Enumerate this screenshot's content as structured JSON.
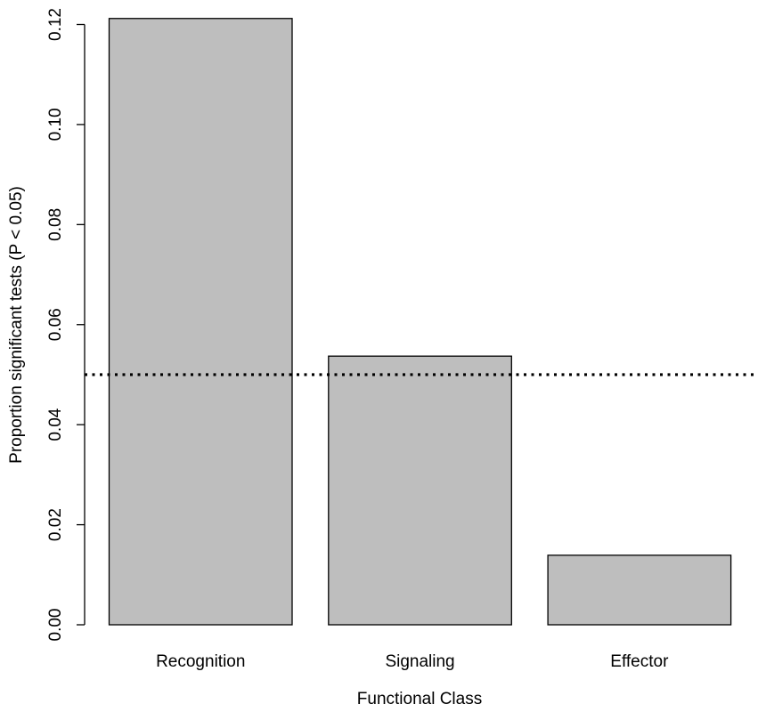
{
  "chart_data": {
    "type": "bar",
    "categories": [
      "Recognition",
      "Signaling",
      "Effector"
    ],
    "values": [
      0.1212,
      0.0537,
      0.0139
    ],
    "title": "",
    "xlabel": "Functional Class",
    "ylabel": "Proportion significant tests (P < 0.05)",
    "ylim": [
      0,
      0.12
    ],
    "yticks": [
      "0.00",
      "0.02",
      "0.04",
      "0.06",
      "0.08",
      "0.10",
      "0.12"
    ],
    "ytick_values": [
      0,
      0.02,
      0.04,
      0.06,
      0.08,
      0.1,
      0.12
    ],
    "reference_line": {
      "y": 0.05,
      "style": "dotted"
    },
    "bar_color": "#bebebe",
    "grid": false,
    "legend": "none"
  }
}
